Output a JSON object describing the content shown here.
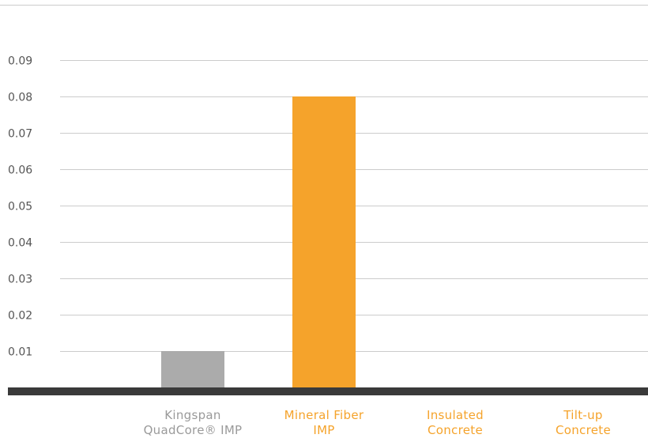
{
  "chart_data": {
    "type": "bar",
    "categories": [
      [
        "Kingspan",
        "QuadCore® IMP"
      ],
      [
        "Mineral Fiber",
        "IMP"
      ],
      [
        "Insulated",
        "Concrete"
      ],
      [
        "Tilt-up",
        "Concrete"
      ]
    ],
    "values": [
      0.01,
      0.08,
      0,
      0
    ],
    "y_ticks": [
      "0.01",
      "0.02",
      "0.03",
      "0.04",
      "0.05",
      "0.06",
      "0.07",
      "0.08",
      "0.09"
    ],
    "ylim": [
      0,
      0.1
    ],
    "grid": true,
    "title": "",
    "xlabel": "",
    "ylabel": ""
  },
  "colors": {
    "bars": [
      "#ababab",
      "#f5a32b",
      "#f5a32b",
      "#f5a32b"
    ],
    "labels": [
      "#9a9a9a",
      "#f5a32b",
      "#f5a32b",
      "#f5a32b"
    ],
    "grid": "#cccccc",
    "baseline": "#3a3a3a",
    "tick_text": "#555555"
  }
}
